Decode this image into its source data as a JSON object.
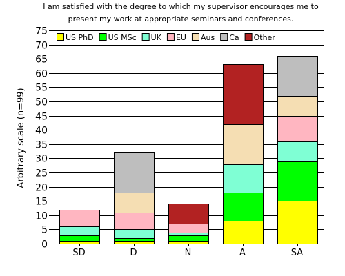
{
  "chart_data": {
    "type": "bar",
    "stacked": true,
    "title_lines": [
      "I am satisfied with the degree to which my supervisor encourages me to",
      "present my work at appropriate seminars and conferences."
    ],
    "xlabel": "",
    "ylabel": "Arbitrary scale (n=99)",
    "ylim": [
      0,
      75
    ],
    "ytick_step": 5,
    "grid": true,
    "legend_position": "top-left inside",
    "categories": [
      "SD",
      "D",
      "N",
      "A",
      "SA"
    ],
    "series": [
      {
        "name": "US PhD",
        "color": "#ffff00",
        "values": [
          1,
          1,
          1,
          8,
          15
        ]
      },
      {
        "name": "US MSc",
        "color": "#00ff00",
        "values": [
          2,
          1,
          2,
          10,
          14
        ]
      },
      {
        "name": "UK",
        "color": "#7fffd4",
        "values": [
          3,
          3,
          1,
          10,
          7
        ]
      },
      {
        "name": "EU",
        "color": "#ffb6c1",
        "values": [
          6,
          6,
          3,
          0,
          9
        ]
      },
      {
        "name": "Aus",
        "color": "#f5deb3",
        "values": [
          0,
          7,
          0,
          14,
          7
        ]
      },
      {
        "name": "Ca",
        "color": "#bebebe",
        "values": [
          0,
          14,
          0,
          0,
          14
        ]
      },
      {
        "name": "Other",
        "color": "#b22222",
        "values": [
          0,
          0,
          7,
          21,
          0
        ]
      }
    ]
  }
}
